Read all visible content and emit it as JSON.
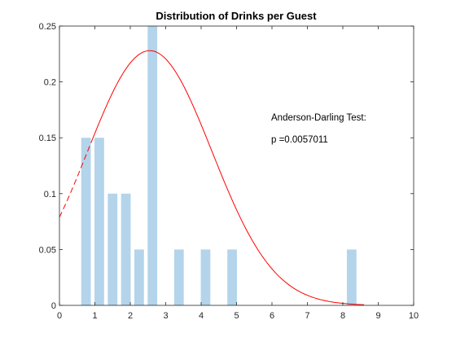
{
  "chart_data": {
    "type": "bar",
    "title": "Distribution of Drinks per Guest",
    "xlabel": "",
    "ylabel": "",
    "xlim": [
      0,
      10
    ],
    "ylim": [
      0,
      0.25
    ],
    "xticks": [
      "0",
      "1",
      "2",
      "3",
      "4",
      "5",
      "6",
      "7",
      "8",
      "9",
      "10"
    ],
    "yticks": [
      "0",
      "0.05",
      "0.1",
      "0.15",
      "0.2",
      "0.25"
    ],
    "grid": false,
    "legend": "none",
    "bars": {
      "color": "#b3d4ea",
      "width": 0.27,
      "x": [
        0.75,
        1.125,
        1.5,
        1.875,
        2.25,
        2.625,
        3.375,
        4.125,
        4.875,
        8.25
      ],
      "values": [
        0.15,
        0.15,
        0.1,
        0.1,
        0.05,
        0.25,
        0.05,
        0.05,
        0.05,
        0.05
      ]
    },
    "fit_curve": {
      "color": "#ff0000",
      "distribution": "normal-shaped fit",
      "peak_x": 2.55,
      "peak_y": 0.228,
      "spread": 1.75,
      "dashed_until_x": 0.9,
      "x_range": [
        0,
        8.6
      ]
    },
    "annotations": [
      "Anderson-Darling Test:",
      "p =0.0057011"
    ]
  }
}
